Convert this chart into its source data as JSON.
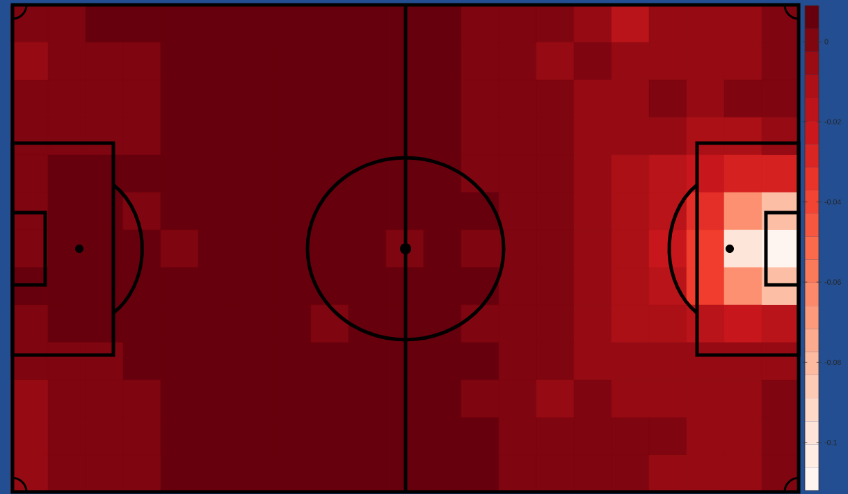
{
  "chart_data": {
    "type": "heatmap",
    "categories": [
      null,
      null,
      null,
      null,
      null,
      null,
      null,
      null,
      null,
      null,
      null,
      null,
      null,
      null,
      null,
      null,
      null,
      null,
      null,
      null,
      null
    ],
    "y_categories": [
      null,
      null,
      null,
      null,
      null,
      null,
      null,
      null,
      null,
      null,
      null,
      null,
      null
    ],
    "cells": [
      [
        0.0,
        0.0,
        0.006,
        0.006,
        0.006,
        0.006,
        0.006,
        0.006,
        0.006,
        0.006,
        0.006,
        0.006,
        0.0,
        0.0,
        0.0,
        -0.006,
        -0.017,
        -0.006,
        -0.006,
        -0.006,
        0.0
      ],
      [
        -0.006,
        0.0,
        0.0,
        0.0,
        0.006,
        0.006,
        0.006,
        0.006,
        0.006,
        0.006,
        0.006,
        0.006,
        0.0,
        0.0,
        -0.006,
        0.0,
        -0.006,
        -0.006,
        -0.006,
        -0.006,
        0.0
      ],
      [
        0.0,
        0.0,
        0.0,
        0.0,
        0.006,
        0.006,
        0.006,
        0.006,
        0.006,
        0.006,
        0.006,
        0.006,
        0.0,
        0.0,
        0.0,
        -0.006,
        -0.006,
        0.0,
        -0.006,
        0.0,
        0.0
      ],
      [
        0.0,
        0.0,
        0.0,
        0.0,
        0.006,
        0.006,
        0.006,
        0.006,
        0.006,
        0.006,
        0.006,
        0.006,
        0.0,
        0.0,
        0.0,
        -0.006,
        -0.006,
        -0.006,
        -0.011,
        -0.011,
        -0.006
      ],
      [
        0.0,
        0.006,
        0.006,
        0.006,
        0.006,
        0.006,
        0.006,
        0.006,
        0.006,
        0.006,
        0.006,
        0.006,
        0.0,
        0.0,
        0.0,
        -0.006,
        -0.011,
        -0.017,
        -0.023,
        -0.029,
        -0.029
      ],
      [
        0.0,
        0.006,
        0.006,
        0.0,
        0.006,
        0.006,
        0.006,
        0.006,
        0.006,
        0.006,
        0.006,
        0.006,
        0.006,
        0.0,
        0.0,
        -0.006,
        -0.011,
        -0.017,
        -0.035,
        -0.063,
        -0.081
      ],
      [
        0.0,
        0.006,
        0.006,
        0.006,
        0.0,
        0.006,
        0.006,
        0.006,
        0.006,
        0.006,
        0.0,
        0.006,
        0.0,
        0.0,
        0.0,
        -0.006,
        -0.011,
        -0.023,
        -0.04,
        -0.098,
        -0.109
      ],
      [
        0.006,
        0.006,
        0.006,
        0.006,
        0.006,
        0.006,
        0.006,
        0.006,
        0.006,
        0.006,
        0.006,
        0.006,
        0.006,
        0.0,
        0.0,
        -0.006,
        -0.011,
        -0.017,
        -0.04,
        -0.063,
        -0.081
      ],
      [
        0.0,
        0.006,
        0.006,
        0.006,
        0.006,
        0.006,
        0.006,
        0.006,
        0.0,
        0.006,
        0.006,
        0.006,
        0.0,
        0.0,
        0.0,
        -0.006,
        -0.011,
        -0.011,
        -0.017,
        -0.023,
        -0.017
      ],
      [
        0.0,
        0.0,
        0.0,
        0.006,
        0.006,
        0.006,
        0.006,
        0.006,
        0.006,
        0.006,
        0.006,
        0.006,
        0.006,
        0.0,
        0.0,
        -0.006,
        -0.006,
        -0.006,
        -0.006,
        -0.006,
        -0.006
      ],
      [
        -0.006,
        0.0,
        0.0,
        0.0,
        0.006,
        0.006,
        0.006,
        0.006,
        0.006,
        0.006,
        0.006,
        0.006,
        0.0,
        0.0,
        -0.006,
        0.0,
        -0.006,
        -0.006,
        -0.006,
        -0.006,
        0.0
      ],
      [
        -0.006,
        0.0,
        0.0,
        0.0,
        0.006,
        0.006,
        0.006,
        0.006,
        0.006,
        0.006,
        0.006,
        0.006,
        0.006,
        0.0,
        0.0,
        0.0,
        0.0,
        0.0,
        -0.006,
        -0.006,
        0.0
      ],
      [
        -0.006,
        0.0,
        0.0,
        0.0,
        0.006,
        0.006,
        0.006,
        0.006,
        0.006,
        0.006,
        0.006,
        0.006,
        0.006,
        0.0,
        0.0,
        0.0,
        0.0,
        -0.006,
        -0.006,
        -0.006,
        0.0
      ]
    ],
    "clim": [
      -0.112,
      0.009
    ],
    "cticks": [
      0,
      -0.02,
      -0.04,
      -0.06,
      -0.08,
      -0.1
    ]
  }
}
